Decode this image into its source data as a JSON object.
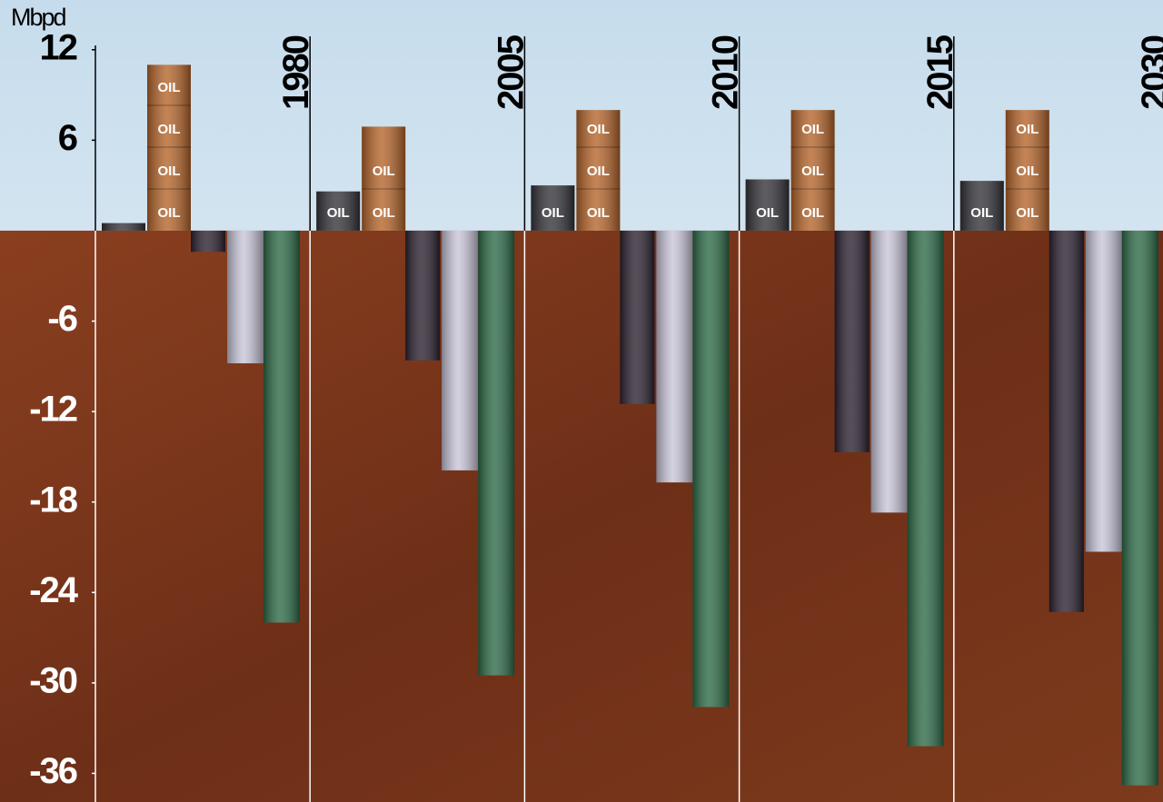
{
  "chart_data": {
    "type": "bar",
    "y_axis_label": "Mbpd",
    "mark_label": "OIL",
    "categories": [
      "1980",
      "2005",
      "2010",
      "2015",
      "2030"
    ],
    "series": [
      {
        "color": "#34343a",
        "values": [
          0.5,
          2.6,
          3,
          3.4,
          3.3
        ]
      },
      {
        "color": "#b5652b",
        "values": [
          11,
          6.9,
          8,
          8,
          8
        ]
      },
      {
        "color": "#2c2230",
        "values": [
          -1.4,
          -8.6,
          -11.5,
          -14.7,
          -25.3
        ]
      },
      {
        "color": "#c9c5d9",
        "values": [
          -8.8,
          -15.9,
          -16.7,
          -18.7,
          -21.3
        ]
      },
      {
        "color": "#2e6b48",
        "values": [
          -26,
          -29.5,
          -31.6,
          -34.2,
          -36.8
        ]
      }
    ],
    "ylim": [
      -37.9,
      15.3
    ],
    "yticks": [
      12,
      6,
      -6,
      -12,
      -18,
      -24,
      -30,
      -36
    ]
  }
}
